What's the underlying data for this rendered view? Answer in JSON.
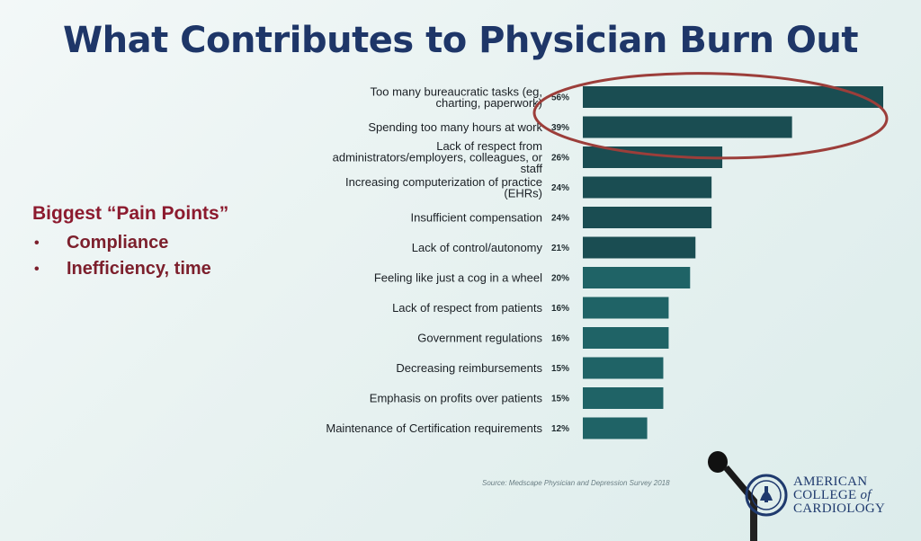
{
  "slide": {
    "title": "What Contributes to Physician Burn Out",
    "pain_points": {
      "heading": "Biggest “Pain Points”",
      "items": [
        "Compliance",
        "Inefficiency, time"
      ]
    },
    "source": "Source: Medscape Physician and Depression Survey 2018",
    "logo": {
      "line1": "AMERICAN",
      "line2a": "COLLEGE ",
      "line2b": "of",
      "line3": "CARDIOLOGY"
    }
  },
  "colors": {
    "title": "#1e3668",
    "pain_points": "#8c1a2e",
    "bar": "#1a4d52",
    "bar_lower": "#1f6366",
    "highlight_ellipse": "#9c3e3a",
    "logo": "#1f3a6e"
  },
  "chart_data": {
    "type": "bar",
    "orientation": "horizontal",
    "categories": [
      "Too many bureaucratic tasks (eg, charting, paperwork)",
      "Spending too many hours at work",
      "Lack of respect from administrators/employers, colleagues, or staff",
      "Increasing computerization of practice (EHRs)",
      "Insufficient compensation",
      "Lack of control/autonomy",
      "Feeling like just a cog in a wheel",
      "Lack of respect from patients",
      "Government regulations",
      "Decreasing reimbursements",
      "Emphasis on profits over patients",
      "Maintenance of Certification requirements"
    ],
    "category_lines": [
      [
        "Too many bureaucratic tasks (eg,",
        "charting, paperwork)"
      ],
      [
        "Spending too many hours at work"
      ],
      [
        "Lack of respect from",
        "administrators/employers, colleagues, or",
        "staff"
      ],
      [
        "Increasing computerization of practice",
        "(EHRs)"
      ],
      [
        "Insufficient compensation"
      ],
      [
        "Lack of control/autonomy"
      ],
      [
        "Feeling like just a cog in a wheel"
      ],
      [
        "Lack of respect from patients"
      ],
      [
        "Government regulations"
      ],
      [
        "Decreasing reimbursements"
      ],
      [
        "Emphasis on profits over patients"
      ],
      [
        "Maintenance of Certification requirements"
      ]
    ],
    "values": [
      56,
      39,
      26,
      24,
      24,
      21,
      20,
      16,
      16,
      15,
      15,
      12
    ],
    "value_labels": [
      "56%",
      "39%",
      "26%",
      "24%",
      "24%",
      "21%",
      "20%",
      "16%",
      "16%",
      "15%",
      "15%",
      "12%"
    ],
    "unit": "%",
    "xlim": [
      0,
      56
    ],
    "highlighted_categories": [
      0,
      1
    ],
    "grid": false,
    "legend": "none"
  }
}
